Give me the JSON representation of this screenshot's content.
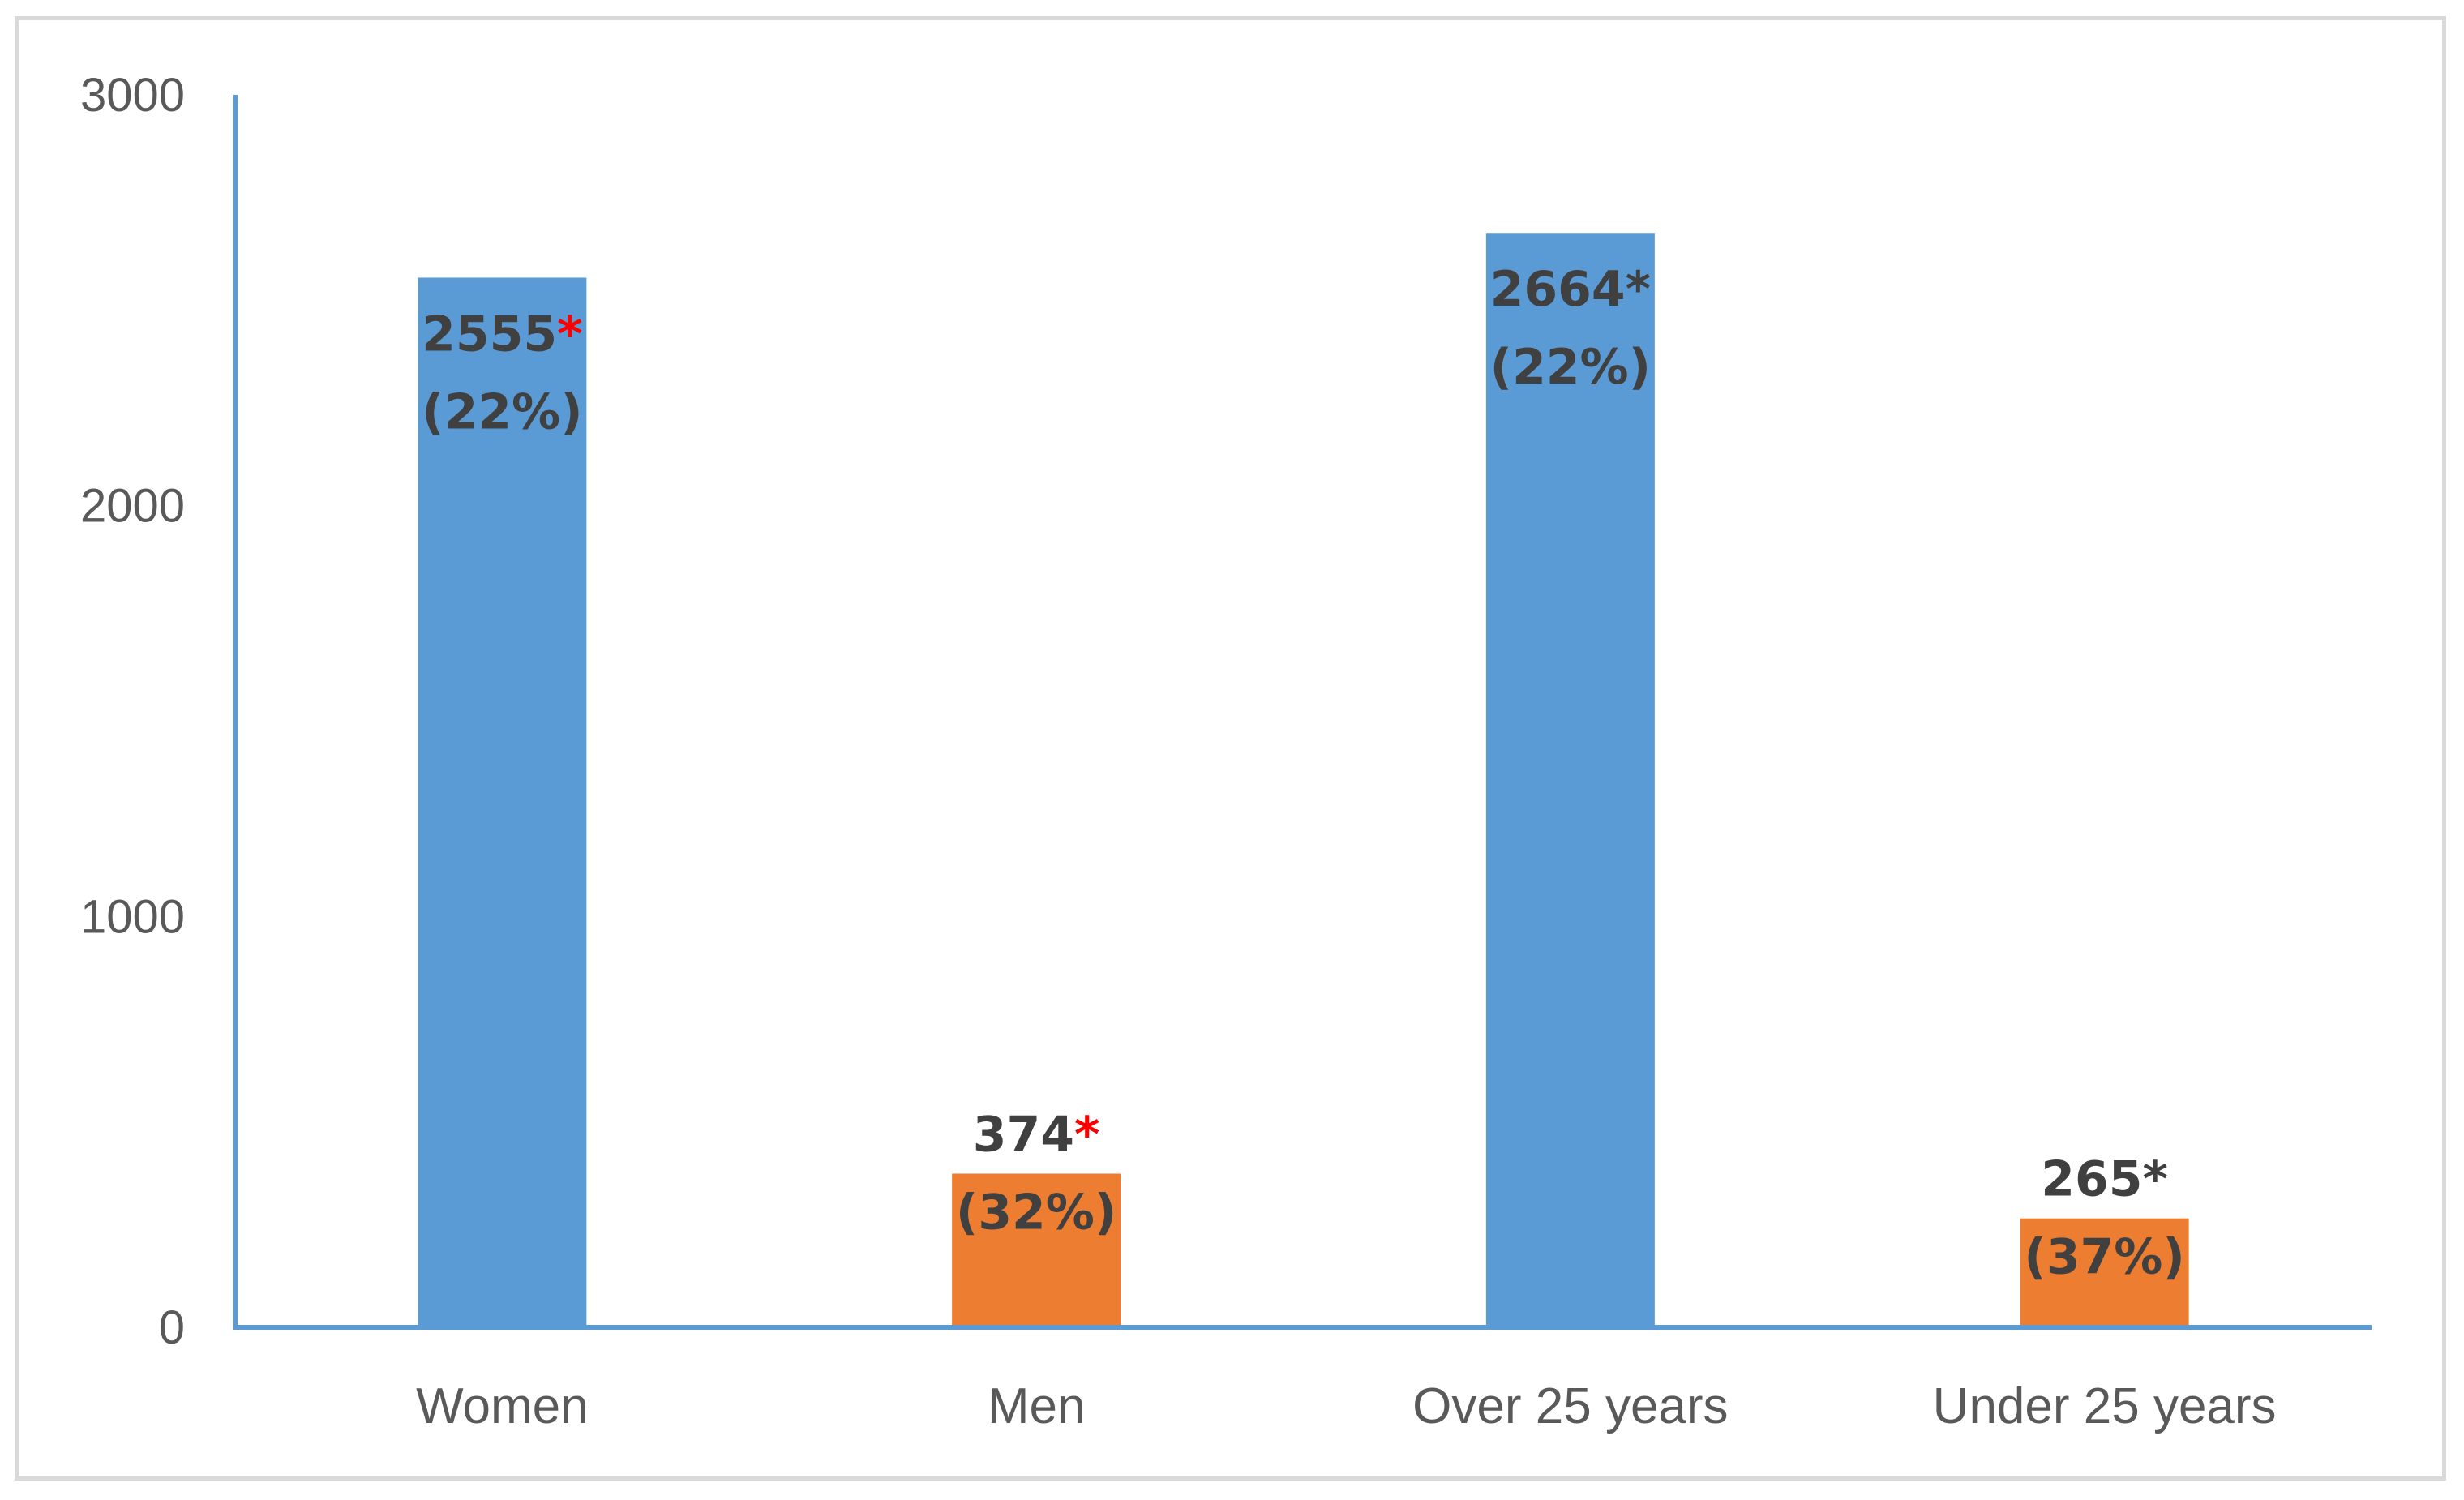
{
  "chart_data": {
    "type": "bar",
    "title": "",
    "xlabel": "",
    "ylabel": "",
    "ylim": [
      0,
      3000
    ],
    "yticks": [
      "0",
      "1000",
      "2000",
      "3000"
    ],
    "grid": false,
    "legend": "none",
    "categories": [
      "Women",
      "Men",
      "Over 25 years",
      "Under 25 years"
    ],
    "values": [
      2555,
      374,
      2664,
      265
    ],
    "bar_colors": [
      "#5b9bd5",
      "#ed7d31",
      "#5b9bd5",
      "#ed7d31"
    ],
    "data_labels": [
      {
        "value": "2555",
        "marker": "*",
        "marker_color": "#ff0000",
        "percent": "(22%)"
      },
      {
        "value": "374",
        "marker": "*",
        "marker_color": "#ff0000",
        "percent": "(32%)"
      },
      {
        "value": "2664",
        "marker": "*",
        "marker_color": "#404040",
        "percent": "(22%)"
      },
      {
        "value": "265",
        "marker": "*",
        "marker_color": "#404040",
        "percent": "(37%)"
      }
    ],
    "axis_color": "#5b9bd5"
  }
}
